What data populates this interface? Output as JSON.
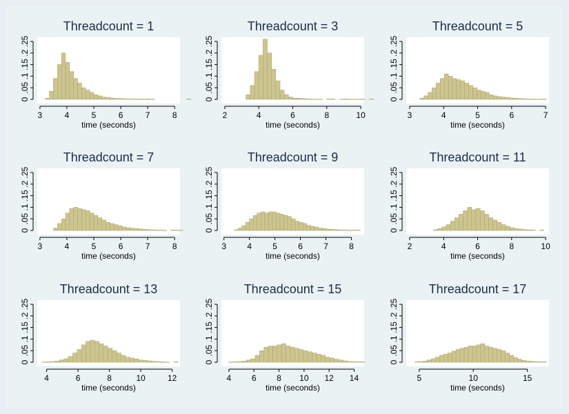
{
  "colors": {
    "bar_fill": "#cdc58f",
    "bar_stroke": "#a8a06a",
    "plot_bg": "#ffffff",
    "outer_bg": "#eaf2f3",
    "axis": "#000000",
    "title": "#1a2c4a"
  },
  "shared": {
    "xlabel": "time (seconds)",
    "y_ticks": [
      0,
      0.05,
      0.1,
      0.15,
      0.2,
      0.25
    ],
    "y_tick_labels": [
      "0",
      ".05",
      ".1",
      ".15",
      ".2",
      ".25"
    ]
  },
  "chart_data": [
    {
      "type": "bar",
      "title": "Threadcount = 1",
      "xlabel": "time (seconds)",
      "xlim": [
        2.9,
        8.2
      ],
      "ylim": [
        0,
        0.25
      ],
      "x_ticks": [
        3,
        4,
        5,
        6,
        7,
        8
      ],
      "bin_start": 3.2,
      "bin_width": 0.15,
      "values": [
        0.005,
        0.035,
        0.09,
        0.15,
        0.2,
        0.16,
        0.12,
        0.09,
        0.07,
        0.05,
        0.04,
        0.03,
        0.02,
        0.015,
        0.01,
        0.008,
        0.006,
        0.004,
        0.004,
        0.003,
        0.002,
        0.002,
        0.002,
        0.002,
        0.001,
        0.002,
        0.001,
        0,
        0,
        0,
        0,
        0,
        0,
        0,
        0,
        0.002
      ]
    },
    {
      "type": "bar",
      "title": "Threadcount = 3",
      "xlabel": "time (seconds)",
      "xlim": [
        1.8,
        10.2
      ],
      "ylim": [
        0,
        0.25
      ],
      "x_ticks": [
        2,
        4,
        6,
        8,
        10
      ],
      "bin_start": 3.25,
      "bin_width": 0.25,
      "values": [
        0.02,
        0.06,
        0.12,
        0.19,
        0.26,
        0.2,
        0.13,
        0.08,
        0.04,
        0.02,
        0.01,
        0.005,
        0.005,
        0.004,
        0.002,
        0.001,
        0.001,
        0.001,
        0,
        0.002,
        0.002,
        0,
        0.001,
        0.002,
        0.001,
        0.001,
        0.001,
        0.001,
        0,
        0.002
      ]
    },
    {
      "type": "bar",
      "title": "Threadcount = 5",
      "xlabel": "time (seconds)",
      "xlim": [
        2.9,
        7.1
      ],
      "ylim": [
        0,
        0.25
      ],
      "x_ticks": [
        3,
        4,
        5,
        6,
        7
      ],
      "bin_start": 3.3,
      "bin_width": 0.12,
      "values": [
        0.005,
        0.015,
        0.03,
        0.05,
        0.07,
        0.09,
        0.11,
        0.1,
        0.09,
        0.085,
        0.08,
        0.07,
        0.06,
        0.05,
        0.04,
        0.035,
        0.03,
        0.02,
        0.015,
        0.012,
        0.01,
        0.008,
        0.006,
        0.005,
        0.004,
        0.003,
        0.002,
        0.002,
        0.001,
        0.001,
        0.002
      ]
    },
    {
      "type": "bar",
      "title": "Threadcount = 7",
      "xlabel": "time (seconds)",
      "xlim": [
        2.9,
        8.2
      ],
      "ylim": [
        0,
        0.25
      ],
      "x_ticks": [
        3,
        4,
        5,
        6,
        7,
        8
      ],
      "bin_start": 3.5,
      "bin_width": 0.15,
      "values": [
        0.01,
        0.03,
        0.05,
        0.075,
        0.095,
        0.1,
        0.095,
        0.09,
        0.085,
        0.075,
        0.065,
        0.055,
        0.045,
        0.035,
        0.03,
        0.025,
        0.02,
        0.015,
        0.012,
        0.01,
        0.008,
        0.007,
        0.005,
        0.004,
        0.003,
        0.002,
        0.002,
        0.001,
        0,
        0.002,
        0.002,
        0.001
      ]
    },
    {
      "type": "bar",
      "title": "Threadcount = 9",
      "xlabel": "time (seconds)",
      "xlim": [
        2.9,
        8.5
      ],
      "ylim": [
        0,
        0.25
      ],
      "x_ticks": [
        3,
        4,
        5,
        6,
        7,
        8
      ],
      "bin_start": 3.4,
      "bin_width": 0.15,
      "values": [
        0.003,
        0.01,
        0.02,
        0.035,
        0.05,
        0.065,
        0.075,
        0.08,
        0.075,
        0.08,
        0.08,
        0.075,
        0.07,
        0.065,
        0.06,
        0.05,
        0.04,
        0.035,
        0.03,
        0.022,
        0.018,
        0.015,
        0.01,
        0.008,
        0.006,
        0.005,
        0.004,
        0.003,
        0.002,
        0.002,
        0.001,
        0.002,
        0.002
      ]
    },
    {
      "type": "bar",
      "title": "Threadcount = 11",
      "xlabel": "time (seconds)",
      "xlim": [
        1.8,
        10.2
      ],
      "ylim": [
        0,
        0.25
      ],
      "x_ticks": [
        2,
        4,
        6,
        8,
        10
      ],
      "bin_start": 3.4,
      "bin_width": 0.25,
      "values": [
        0.003,
        0.008,
        0.015,
        0.025,
        0.04,
        0.055,
        0.07,
        0.085,
        0.1,
        0.09,
        0.095,
        0.085,
        0.07,
        0.055,
        0.045,
        0.035,
        0.025,
        0.018,
        0.012,
        0.008,
        0.006,
        0.004,
        0.003,
        0.002,
        0,
        0.002
      ]
    },
    {
      "type": "bar",
      "title": "Threadcount = 13",
      "xlabel": "time (seconds)",
      "xlim": [
        3.4,
        12.5
      ],
      "ylim": [
        0,
        0.25
      ],
      "x_ticks": [
        4,
        6,
        8,
        10,
        12
      ],
      "bin_start": 3.7,
      "bin_width": 0.28,
      "values": [
        0.001,
        0.002,
        0.003,
        0.005,
        0.01,
        0.015,
        0.025,
        0.04,
        0.055,
        0.075,
        0.09,
        0.095,
        0.09,
        0.08,
        0.07,
        0.06,
        0.05,
        0.04,
        0.03,
        0.022,
        0.018,
        0.014,
        0.01,
        0.008,
        0.006,
        0.004,
        0.003,
        0.002,
        0.001,
        0,
        0.002
      ]
    },
    {
      "type": "bar",
      "title": "Threadcount = 15",
      "xlabel": "time (seconds)",
      "xlim": [
        3.4,
        14.8
      ],
      "ylim": [
        0,
        0.25
      ],
      "x_ticks": [
        4,
        6,
        8,
        10,
        12,
        14
      ],
      "bin_start": 4.0,
      "bin_width": 0.35,
      "values": [
        0.001,
        0.002,
        0.003,
        0.005,
        0.01,
        0.015,
        0.03,
        0.05,
        0.065,
        0.07,
        0.07,
        0.075,
        0.08,
        0.07,
        0.065,
        0.06,
        0.055,
        0.05,
        0.045,
        0.04,
        0.035,
        0.03,
        0.022,
        0.018,
        0.013,
        0.01,
        0.006,
        0.004,
        0.003,
        0.002,
        0.002
      ]
    },
    {
      "type": "bar",
      "title": "Threadcount = 17",
      "xlabel": "time (seconds)",
      "xlim": [
        3.8,
        17.0
      ],
      "ylim": [
        0,
        0.25
      ],
      "x_ticks": [
        5,
        10,
        15
      ],
      "bin_start": 4.6,
      "bin_width": 0.38,
      "values": [
        0.002,
        0.003,
        0.005,
        0.01,
        0.015,
        0.022,
        0.03,
        0.035,
        0.04,
        0.048,
        0.055,
        0.06,
        0.065,
        0.07,
        0.07,
        0.075,
        0.08,
        0.07,
        0.065,
        0.06,
        0.055,
        0.05,
        0.04,
        0.03,
        0.02,
        0.013,
        0.008,
        0.005,
        0.004,
        0.003,
        0.002,
        0.002
      ]
    }
  ]
}
